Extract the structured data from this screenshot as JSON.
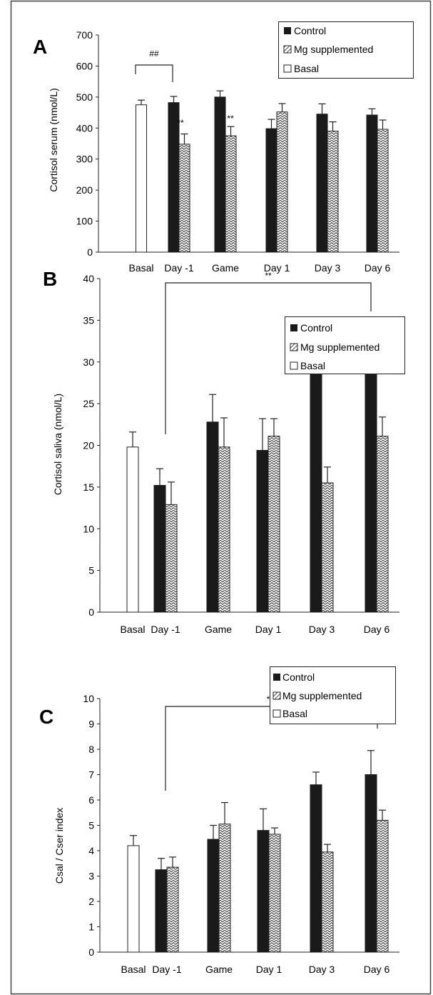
{
  "colors": {
    "control": "#1a1a1a",
    "mg_stroke": "#333333",
    "basal_fill": "#ffffff",
    "axis": "#222222"
  },
  "chart_data": [
    {
      "type": "bar",
      "panel_letter": "A",
      "ylabel": "Cortisol serum (nmol/L)",
      "ylim": [
        0,
        700
      ],
      "yticks": [
        "0",
        "100",
        "200",
        "300",
        "400",
        "500",
        "600",
        "700"
      ],
      "categories": [
        "Basal",
        "Day -1",
        "Game",
        "Day 1",
        "Day 3",
        "Day 6"
      ],
      "legend_position": "top-right",
      "series": [
        {
          "name": "Control",
          "style": "solid",
          "values": [
            null,
            482,
            500,
            398,
            445,
            442
          ],
          "errors": [
            null,
            20,
            20,
            30,
            33,
            20
          ]
        },
        {
          "name": "Mg supplemented",
          "style": "zigzag",
          "values": [
            null,
            348,
            375,
            452,
            390,
            396
          ],
          "errors": [
            null,
            33,
            30,
            27,
            30,
            30
          ]
        },
        {
          "name": "Basal",
          "style": "open",
          "values": [
            475,
            null,
            null,
            null,
            null,
            null
          ],
          "errors": [
            15,
            null,
            null,
            null,
            null,
            null
          ]
        }
      ],
      "annotations": [
        {
          "text": "##",
          "type": "bracket",
          "from": "Basal",
          "to": "Day -1"
        },
        {
          "text": "**",
          "type": "star",
          "category": "Day -1"
        },
        {
          "text": "**",
          "type": "star",
          "category": "Game"
        }
      ]
    },
    {
      "type": "bar",
      "panel_letter": "B",
      "ylabel": "Cortisol saliva (nmol/L)",
      "ylim": [
        0,
        40
      ],
      "yticks": [
        "0",
        "5",
        "10",
        "15",
        "20",
        "25",
        "30",
        "35",
        "40"
      ],
      "categories": [
        "Basal",
        "Day -1",
        "Game",
        "Day 1",
        "Day 3",
        "Day 6"
      ],
      "legend_position": "above-right",
      "series": [
        {
          "name": "Control",
          "style": "solid",
          "values": [
            null,
            15.2,
            22.8,
            19.4,
            29.6,
            30.1
          ],
          "errors": [
            null,
            2.0,
            3.3,
            3.8,
            3.2,
            3.5
          ]
        },
        {
          "name": "Mg supplemented",
          "style": "zigzag",
          "values": [
            null,
            12.9,
            19.8,
            21.1,
            15.5,
            21.1
          ],
          "errors": [
            null,
            2.7,
            3.5,
            2.1,
            1.9,
            2.3
          ]
        },
        {
          "name": "Basal",
          "style": "open",
          "values": [
            19.8,
            null,
            null,
            null,
            null,
            null
          ],
          "errors": [
            1.8,
            null,
            null,
            null,
            null,
            null
          ]
        }
      ],
      "annotations": [
        {
          "text": "**",
          "type": "bracket",
          "from": "Day -1",
          "to": "Day 6"
        }
      ]
    },
    {
      "type": "bar",
      "panel_letter": "C",
      "ylabel": "Csal / Cser index",
      "ylim": [
        0,
        10
      ],
      "yticks": [
        "0",
        "1",
        "2",
        "3",
        "4",
        "5",
        "6",
        "7",
        "8",
        "9",
        "10"
      ],
      "categories": [
        "Basal",
        "Day -1",
        "Game",
        "Day 1",
        "Day 3",
        "Day 6"
      ],
      "legend_position": "above-right",
      "series": [
        {
          "name": "Control",
          "style": "solid",
          "values": [
            null,
            3.25,
            4.45,
            4.8,
            6.6,
            7.0
          ],
          "errors": [
            null,
            0.45,
            0.55,
            0.85,
            0.5,
            0.95
          ]
        },
        {
          "name": "Mg supplemented",
          "style": "zigzag",
          "values": [
            null,
            3.35,
            5.05,
            4.65,
            3.95,
            5.2
          ],
          "errors": [
            null,
            0.4,
            0.85,
            0.25,
            0.3,
            0.4
          ]
        },
        {
          "name": "Basal",
          "style": "open",
          "values": [
            4.2,
            null,
            null,
            null,
            null,
            null
          ],
          "errors": [
            0.4,
            null,
            null,
            null,
            null,
            null
          ]
        }
      ],
      "annotations": [
        {
          "text": "*",
          "type": "bracket",
          "from": "Day -1",
          "to": "Day 6"
        }
      ]
    }
  ]
}
